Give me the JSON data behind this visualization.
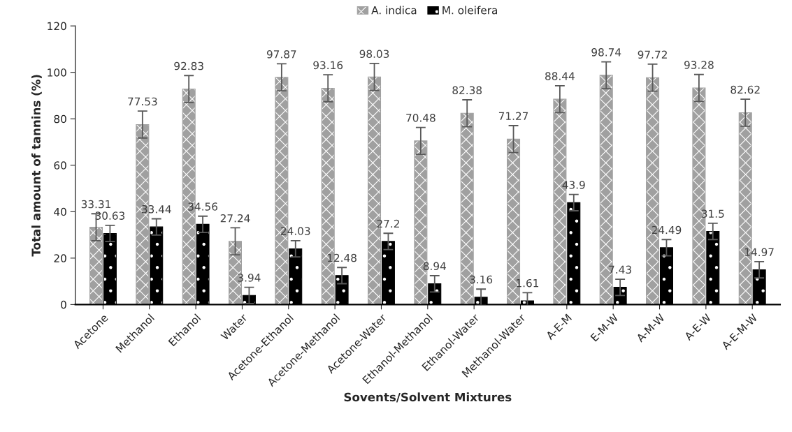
{
  "chart_data": {
    "type": "bar",
    "xlabel": "Sovents/Solvent Mixtures",
    "ylabel": "Total amount of tannins (%)",
    "categories": [
      "Acetone",
      "Methanol",
      "Ethanol",
      "Water",
      "Acetone-Ethanol",
      "Acetone-Methanol",
      "Acetone-Water",
      "Ethanol-Methanol",
      "Ethanol-Water",
      "Methanol-Water",
      "A-E-M",
      "E-M-W",
      "A-M-W",
      "A-E-W",
      "A-E-M-W"
    ],
    "series": [
      {
        "name": "A. indica",
        "color": "#a0a0a0",
        "values": [
          33.31,
          77.53,
          92.83,
          27.24,
          97.87,
          93.16,
          98.03,
          70.48,
          82.38,
          71.27,
          88.44,
          98.74,
          97.72,
          93.28,
          82.62
        ],
        "errors": [
          5.8,
          5.8,
          5.8,
          5.8,
          5.8,
          5.8,
          5.8,
          5.8,
          5.8,
          5.8,
          5.8,
          5.8,
          5.8,
          5.8,
          5.8
        ]
      },
      {
        "name": "M. oleifera",
        "color": "#000000",
        "values": [
          30.63,
          33.44,
          34.56,
          3.94,
          24.03,
          12.48,
          27.2,
          8.94,
          3.16,
          1.61,
          43.9,
          7.43,
          24.49,
          31.5,
          14.97
        ],
        "errors": [
          3.5,
          3.5,
          3.5,
          3.5,
          3.5,
          3.5,
          3.5,
          3.5,
          3.5,
          3.5,
          3.5,
          3.5,
          3.5,
          3.5,
          3.5
        ]
      }
    ],
    "ylim": [
      0,
      120
    ],
    "yticks": [
      0,
      20,
      40,
      60,
      80,
      100,
      120
    ],
    "data_labels": true,
    "legend": "top",
    "grid": false
  }
}
